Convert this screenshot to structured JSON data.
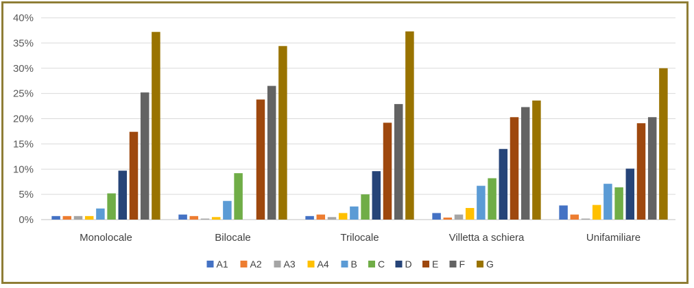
{
  "chart_data": {
    "type": "bar",
    "title": "",
    "xlabel": "",
    "ylabel": "",
    "ylim": [
      0,
      40
    ],
    "yticks": [
      "0%",
      "5%",
      "10%",
      "15%",
      "20%",
      "25%",
      "30%",
      "35%",
      "40%"
    ],
    "yunit": "%",
    "grid": true,
    "legend_position": "bottom",
    "categories": [
      "Monolocale",
      "Bilocale",
      "Trilocale",
      "Villetta a schiera",
      "Unifamiliare"
    ],
    "series": [
      {
        "name": "A1",
        "color": "#4472c4",
        "values": [
          0.7,
          1.0,
          0.7,
          1.3,
          2.8
        ]
      },
      {
        "name": "A2",
        "color": "#ed7d31",
        "values": [
          0.7,
          0.7,
          1.0,
          0.4,
          1.0
        ]
      },
      {
        "name": "A3",
        "color": "#a5a5a5",
        "values": [
          0.7,
          0.2,
          0.5,
          1.0,
          0.2
        ]
      },
      {
        "name": "A4",
        "color": "#ffc000",
        "values": [
          0.7,
          0.5,
          1.3,
          2.3,
          2.9
        ]
      },
      {
        "name": "B",
        "color": "#5b9bd5",
        "values": [
          2.2,
          3.7,
          2.6,
          6.7,
          7.1
        ]
      },
      {
        "name": "C",
        "color": "#70ad47",
        "values": [
          5.2,
          9.2,
          5.0,
          8.2,
          6.4
        ]
      },
      {
        "name": "D",
        "color": "#264478",
        "values": [
          9.7,
          0.0,
          9.6,
          14.0,
          10.1
        ]
      },
      {
        "name": "E",
        "color": "#9e480e",
        "values": [
          17.4,
          23.8,
          19.2,
          20.3,
          19.1
        ]
      },
      {
        "name": "F",
        "color": "#636363",
        "values": [
          25.2,
          26.5,
          22.9,
          22.3,
          20.3
        ]
      },
      {
        "name": "G",
        "color": "#997300",
        "values": [
          37.2,
          34.4,
          37.3,
          23.6,
          30.0
        ]
      }
    ]
  },
  "frame_color": "#8f7d35"
}
